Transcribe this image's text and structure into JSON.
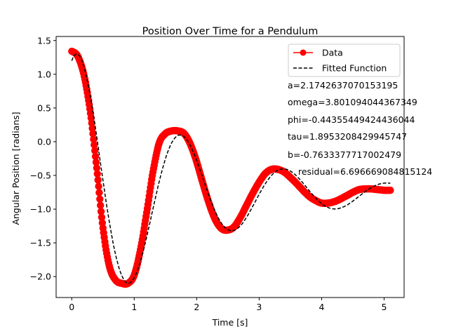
{
  "chart_data": {
    "type": "line",
    "title": "Position Over Time for a Pendulum",
    "xlabel": "Time [s]",
    "ylabel": "Angular Position [radians]",
    "xlim": [
      -0.25,
      5.32
    ],
    "ylim": [
      -2.31,
      1.56
    ],
    "xticks": [
      0,
      1,
      2,
      3,
      4,
      5
    ],
    "yticks": [
      -2.0,
      -1.5,
      -1.0,
      -0.5,
      0.0,
      0.5,
      1.0,
      1.5
    ],
    "xtick_labels": [
      "0",
      "1",
      "2",
      "3",
      "4",
      "5"
    ],
    "ytick_labels": [
      "−2.0",
      "−1.5",
      "−1.0",
      "−0.5",
      "0.0",
      "0.5",
      "1.0",
      "1.5"
    ],
    "grid": false,
    "legend_position": "top-right",
    "series": [
      {
        "name": "Data",
        "style": "line-with-circle-markers",
        "color": "#ff0000",
        "x": [
          0.0,
          0.1,
          0.2,
          0.3,
          0.4,
          0.5,
          0.6,
          0.7,
          0.8,
          0.9,
          1.0,
          1.1,
          1.2,
          1.3,
          1.4,
          1.5,
          1.6,
          1.7,
          1.8,
          1.9,
          2.0,
          2.1,
          2.2,
          2.3,
          2.4,
          2.5,
          2.6,
          2.7,
          2.8,
          2.9,
          3.0,
          3.1,
          3.2,
          3.3,
          3.4,
          3.5,
          3.6,
          3.7,
          3.8,
          3.9,
          4.0,
          4.1,
          4.2,
          4.3,
          4.4,
          4.5,
          4.6,
          4.7,
          4.8,
          4.9,
          5.0,
          5.1
        ],
        "y": [
          1.34,
          1.26,
          0.97,
          0.42,
          -0.39,
          -1.28,
          -1.84,
          -2.05,
          -2.1,
          -2.1,
          -1.98,
          -1.6,
          -1.05,
          -0.45,
          -0.02,
          0.12,
          0.16,
          0.16,
          0.12,
          -0.04,
          -0.3,
          -0.62,
          -0.92,
          -1.16,
          -1.29,
          -1.31,
          -1.26,
          -1.12,
          -0.94,
          -0.76,
          -0.6,
          -0.47,
          -0.41,
          -0.41,
          -0.45,
          -0.53,
          -0.62,
          -0.72,
          -0.81,
          -0.87,
          -0.91,
          -0.91,
          -0.89,
          -0.85,
          -0.8,
          -0.75,
          -0.71,
          -0.7,
          -0.7,
          -0.71,
          -0.72,
          -0.72
        ]
      },
      {
        "name": "Fitted Function",
        "style": "dashed-line",
        "color": "#000000",
        "params": {
          "a": 2.1742637070153195,
          "omega": 3.801094044367349,
          "phi": -0.44355449424436044,
          "tau": 1.8953208429945747,
          "b": -0.7633377717002479
        },
        "x_range": [
          0.0,
          5.1
        ]
      }
    ],
    "annotations": [
      "a=2.1742637070153195",
      "omega=3.801094044367349",
      "phi=-0.44355449424436044",
      "tau=1.8953208429945747",
      "b=-0.7633377717002479",
      "residual=6.696669084815124"
    ]
  }
}
